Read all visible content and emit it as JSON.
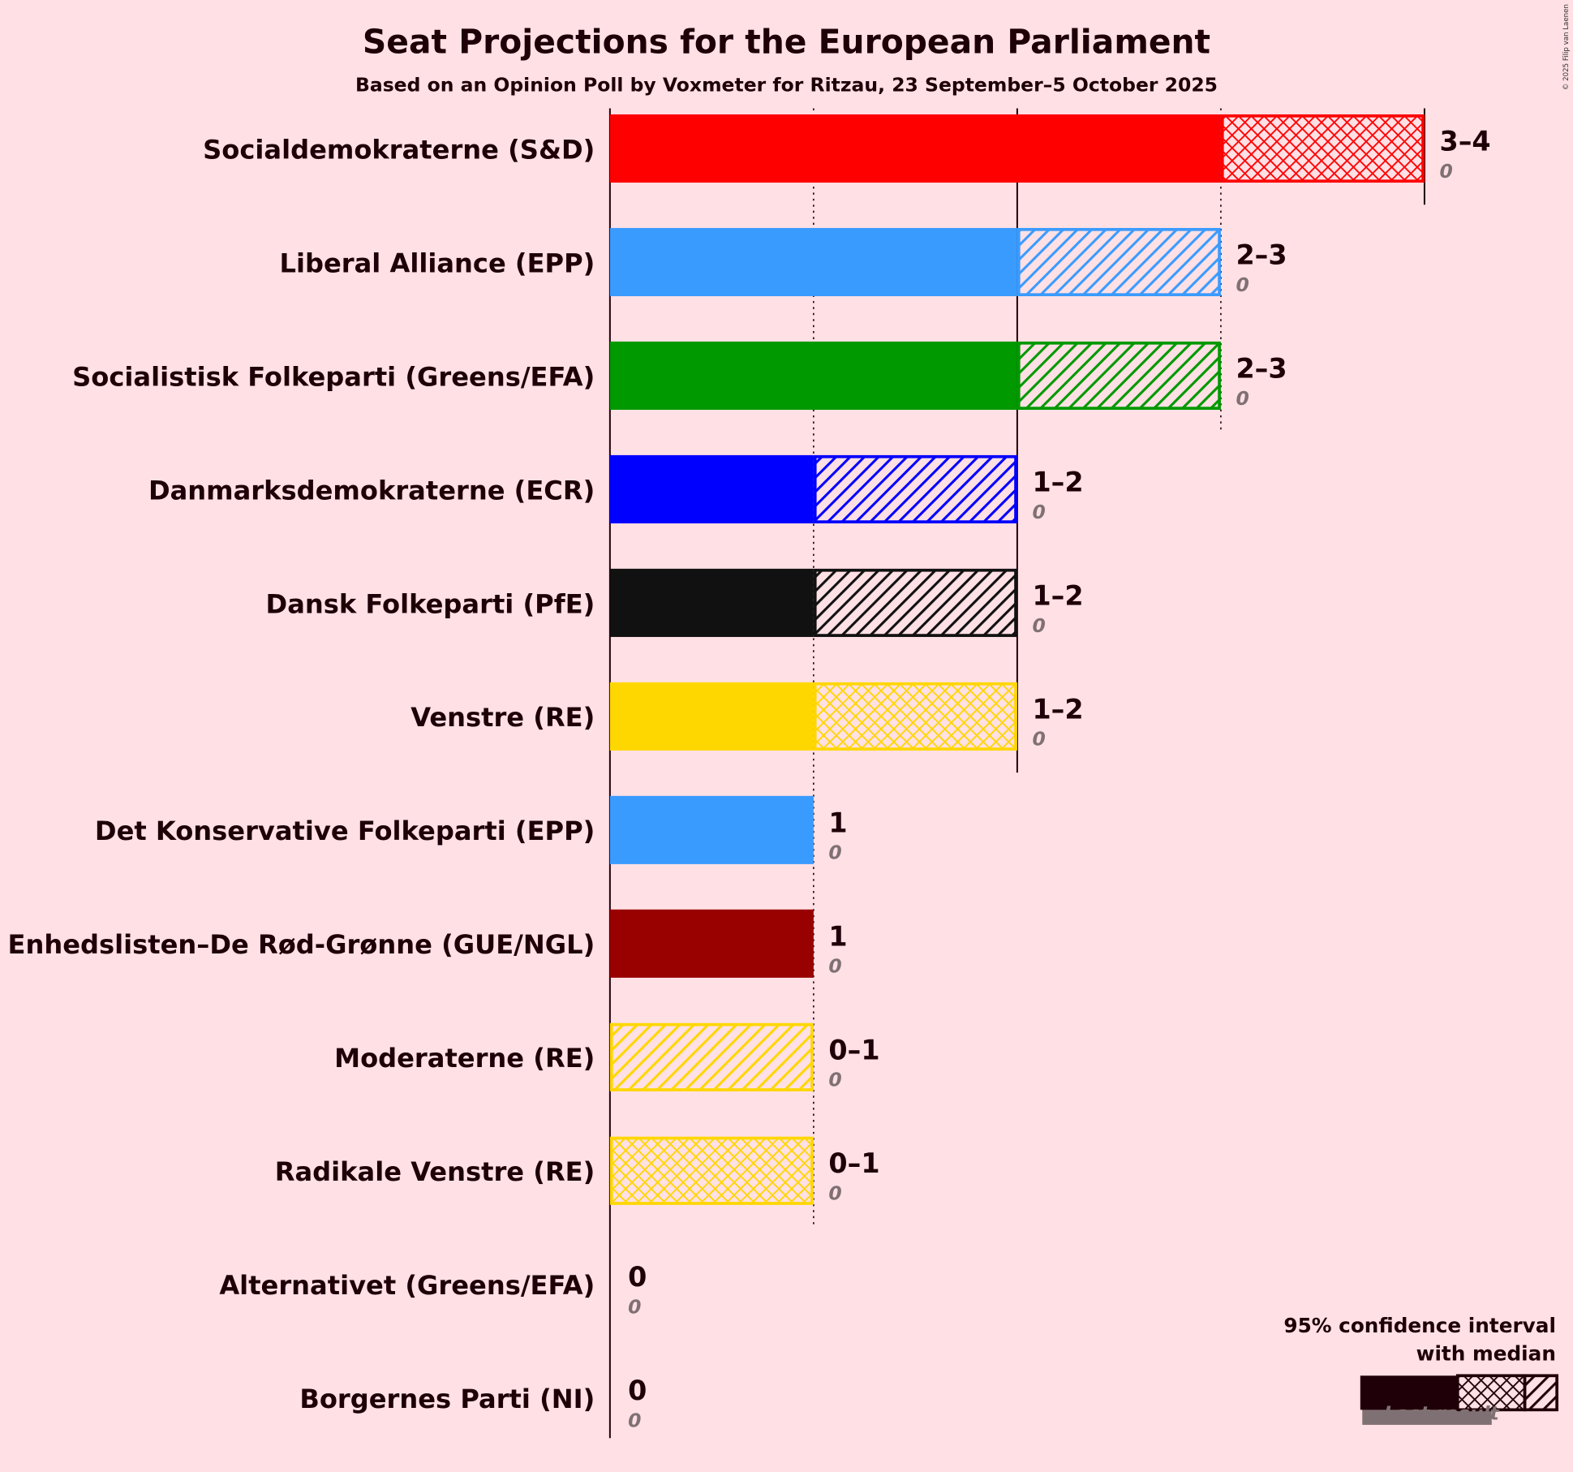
{
  "chart_data": {
    "type": "bar",
    "title": "Seat Projections for the European Parliament",
    "subtitle": "Based on an Opinion Poll by Voxmeter for Ritzau, 23 September–5 October 2025",
    "copyright": "© 2025 Filip van Laenen",
    "xlim": [
      0,
      4
    ],
    "parties": [
      {
        "name": "Socialdemokraterne (S&D)",
        "color": "#ff0000",
        "low": 3,
        "median": 4,
        "high": 4,
        "range_label": "3–4",
        "last_result": 0,
        "last_label": "0"
      },
      {
        "name": "Liberal Alliance (EPP)",
        "color": "#3a9bff",
        "low": 2,
        "median": 2,
        "high": 3,
        "range_label": "2–3",
        "last_result": 0,
        "last_label": "0"
      },
      {
        "name": "Socialistisk Folkeparti (Greens/EFA)",
        "color": "#009900",
        "low": 2,
        "median": 2,
        "high": 3,
        "range_label": "2–3",
        "last_result": 0,
        "last_label": "0"
      },
      {
        "name": "Danmarksdemokraterne (ECR)",
        "color": "#0000ff",
        "low": 1,
        "median": 1,
        "high": 2,
        "range_label": "1–2",
        "last_result": 0,
        "last_label": "0"
      },
      {
        "name": "Dansk Folkeparti (PfE)",
        "color": "#111111",
        "low": 1,
        "median": 1,
        "high": 2,
        "range_label": "1–2",
        "last_result": 0,
        "last_label": "0"
      },
      {
        "name": "Venstre (RE)",
        "color": "#ffd700",
        "low": 1,
        "median": 2,
        "high": 2,
        "range_label": "1–2",
        "last_result": 0,
        "last_label": "0"
      },
      {
        "name": "Det Konservative Folkeparti (EPP)",
        "color": "#3a9bff",
        "low": 1,
        "median": 1,
        "high": 1,
        "range_label": "1",
        "last_result": 0,
        "last_label": "0"
      },
      {
        "name": "Enhedslisten–De Rød-Grønne (GUE/NGL)",
        "color": "#990000",
        "low": 1,
        "median": 1,
        "high": 1,
        "range_label": "1",
        "last_result": 0,
        "last_label": "0"
      },
      {
        "name": "Moderaterne (RE)",
        "color": "#ffd700",
        "low": 0,
        "median": 0,
        "high": 1,
        "range_label": "0–1",
        "last_result": 0,
        "last_label": "0"
      },
      {
        "name": "Radikale Venstre (RE)",
        "color": "#ffd700",
        "low": 0,
        "median": 1,
        "high": 1,
        "range_label": "0–1",
        "last_result": 0,
        "last_label": "0"
      },
      {
        "name": "Alternativet (Greens/EFA)",
        "color": "#009900",
        "low": 0,
        "median": 0,
        "high": 0,
        "range_label": "0",
        "last_result": 0,
        "last_label": "0"
      },
      {
        "name": "Borgernes Parti (NI)",
        "color": "#888888",
        "low": 0,
        "median": 0,
        "high": 0,
        "range_label": "0",
        "last_result": 0,
        "last_label": "0"
      }
    ],
    "legend": {
      "line1": "95% confidence interval",
      "line2": "with median",
      "last_result": "Last result",
      "placement": "bottom-right",
      "color": "#200008"
    }
  }
}
